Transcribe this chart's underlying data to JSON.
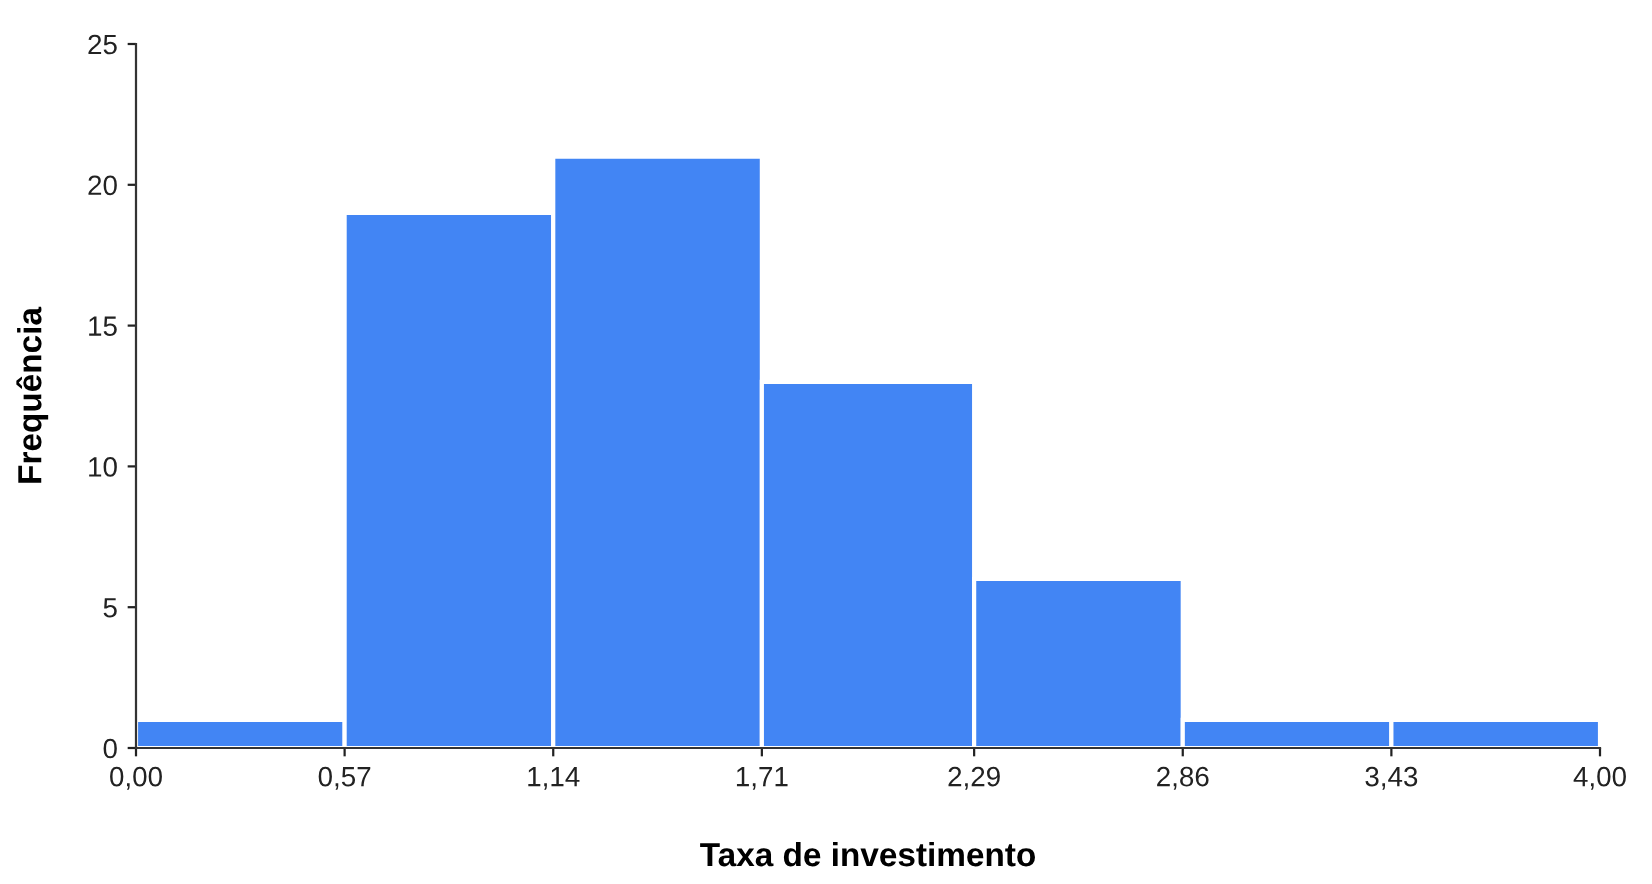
{
  "chart_data": {
    "type": "histogram",
    "xlabel": "Taxa de investimento",
    "ylabel": "Frequência",
    "bins": [
      0,
      0.57,
      1.14,
      1.71,
      2.29,
      2.86,
      3.43,
      4.0
    ],
    "values": [
      1,
      19,
      21,
      13,
      6,
      1,
      1
    ],
    "color": "#4285f4",
    "xlim": [
      0,
      4.0
    ],
    "xticks": [
      {
        "value": 0,
        "label": "0,00"
      },
      {
        "value": 0.57,
        "label": "0,57"
      },
      {
        "value": 1.14,
        "label": "1,14"
      },
      {
        "value": 1.71,
        "label": "1,71"
      },
      {
        "value": 2.29,
        "label": "2,29"
      },
      {
        "value": 2.86,
        "label": "2,86"
      },
      {
        "value": 3.43,
        "label": "3,43"
      },
      {
        "value": 4.0,
        "label": "4,00"
      }
    ],
    "ylim": [
      0,
      25
    ],
    "yticks": [
      0,
      5,
      10,
      15,
      20,
      25
    ],
    "grid": false
  }
}
